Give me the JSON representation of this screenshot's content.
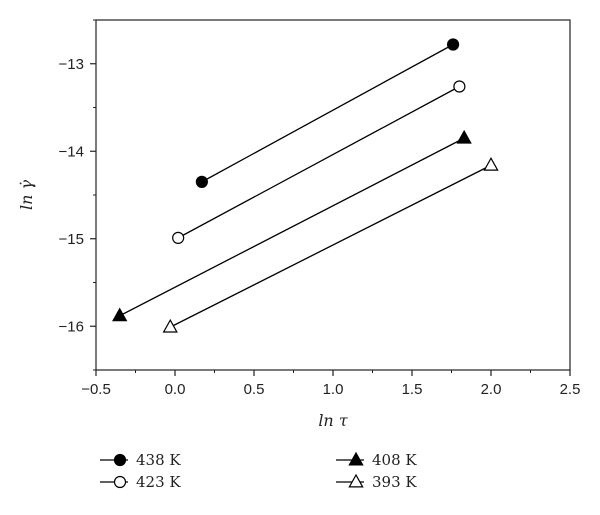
{
  "chart_data": {
    "type": "line",
    "xlabel": "ln τ",
    "ylabel": "ln γ̇",
    "xlim": [
      -0.5,
      2.5
    ],
    "ylim": [
      -16.5,
      -12.5
    ],
    "x_ticks": [
      -0.5,
      0.0,
      0.5,
      1.0,
      1.5,
      2.0,
      2.5
    ],
    "x_tick_labels": [
      "−0.5",
      "0.0",
      "0.5",
      "1.0",
      "1.5",
      "2.0",
      "2.5"
    ],
    "y_ticks": [
      -13,
      -14,
      -15,
      -16
    ],
    "y_tick_labels": [
      "−13",
      "−14",
      "−15",
      "−16"
    ],
    "grid": false,
    "legend_position": "bottom",
    "series": [
      {
        "name": "438 K",
        "marker": "filled-circle",
        "x": [
          0.17,
          1.76
        ],
        "y": [
          -14.35,
          -12.78
        ]
      },
      {
        "name": "423 K",
        "marker": "open-circle",
        "x": [
          0.02,
          1.8
        ],
        "y": [
          -14.99,
          -13.26
        ]
      },
      {
        "name": "408 K",
        "marker": "filled-triangle",
        "x": [
          -0.35,
          1.83
        ],
        "y": [
          -15.88,
          -13.85
        ]
      },
      {
        "name": "393 K",
        "marker": "open-triangle",
        "x": [
          -0.03,
          2.0
        ],
        "y": [
          -16.01,
          -14.16
        ]
      }
    ]
  }
}
